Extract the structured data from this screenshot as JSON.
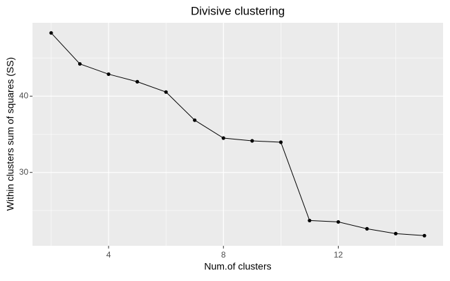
{
  "chart_data": {
    "type": "line",
    "title": "Divisive clustering",
    "x_label": "Num.of clusters",
    "y_label": "Within clusters sum of squares (SS)",
    "x": [
      2,
      3,
      4,
      5,
      6,
      7,
      8,
      9,
      10,
      11,
      12,
      13,
      14,
      15
    ],
    "series": [
      {
        "name": "SS",
        "color": "#000000",
        "values": [
          48.29,
          44.23,
          42.88,
          41.89,
          40.54,
          36.85,
          34.5,
          34.14,
          33.96,
          23.69,
          23.51,
          22.61,
          21.98,
          21.71
        ]
      }
    ],
    "xlim": [
      1.35,
      15.65
    ],
    "ylim": [
      20.38,
      49.62
    ],
    "xticks": [
      4,
      8,
      12
    ],
    "yticks": [
      30,
      40
    ],
    "x_minor_grid": [
      2,
      6,
      10,
      14
    ],
    "y_minor_grid": [
      25,
      35,
      45
    ],
    "grid": true,
    "panel_color": "#ebebeb"
  }
}
